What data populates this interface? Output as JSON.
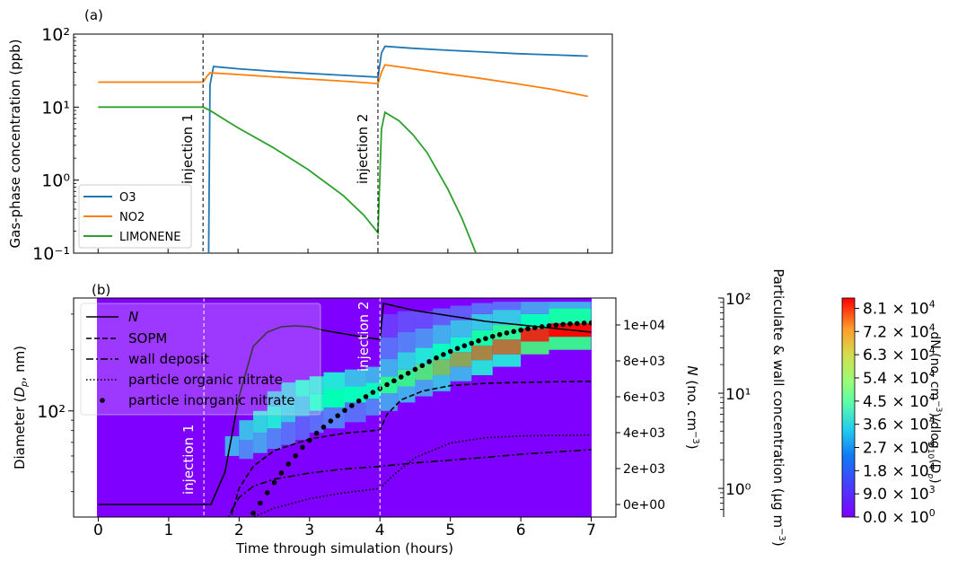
{
  "chart_data": [
    {
      "panel_label": "(a)",
      "type": "line",
      "ylabel": "Gas-phase concentration (ppb)",
      "yscale": "log",
      "ylim": [
        0.1,
        100
      ],
      "xlim": [
        -0.35,
        7.35
      ],
      "xticks": [
        0,
        1,
        2,
        3,
        4,
        5,
        6,
        7
      ],
      "yticks": [
        {
          "value": 0.1,
          "label": "10⁻¹"
        },
        {
          "value": 1,
          "label": "10⁰"
        },
        {
          "value": 10,
          "label": "10¹"
        },
        {
          "value": 100,
          "label": "10²"
        }
      ],
      "legend_position": "lower-left",
      "series": [
        {
          "name": "O3",
          "color": "#1f77b4",
          "x": [
            0,
            1.5,
            1.56,
            1.58,
            1.6,
            1.65,
            2.0,
            2.5,
            3.0,
            3.5,
            4.0,
            4.03,
            4.05,
            4.1,
            4.5,
            5.0,
            5.5,
            6.0,
            6.5,
            7.0
          ],
          "y": [
            null,
            null,
            null,
            0.1,
            20,
            36,
            33.5,
            31,
            29,
            27.3,
            25.8,
            40,
            55,
            68,
            64,
            60,
            57,
            54,
            52,
            50
          ]
        },
        {
          "name": "NO2",
          "color": "#ff7f0e",
          "x": [
            0,
            1.0,
            1.5,
            1.55,
            1.6,
            2.0,
            2.5,
            3.0,
            3.5,
            4.0,
            4.05,
            4.1,
            4.5,
            5.0,
            5.5,
            6.0,
            6.5,
            7.0
          ],
          "y": [
            22,
            22,
            22,
            26,
            29.5,
            28,
            26,
            24.3,
            22.7,
            21,
            30,
            38,
            33.5,
            28.5,
            24.5,
            20.8,
            17.5,
            14
          ]
        },
        {
          "name": "LIMONENE",
          "color": "#2ca02c",
          "x": [
            0,
            1.0,
            1.5,
            1.6,
            2.0,
            2.5,
            3.0,
            3.5,
            3.8,
            4.0,
            4.05,
            4.1,
            4.3,
            4.5,
            4.7,
            5.0,
            5.2,
            5.4
          ],
          "y": [
            10,
            10,
            10,
            9,
            5.2,
            2.8,
            1.4,
            0.62,
            0.33,
            0.19,
            5,
            8.5,
            6.5,
            4.2,
            2.4,
            0.75,
            0.3,
            0.1
          ]
        }
      ],
      "annotations": [
        {
          "text": "injection 1",
          "x": 1.5
        },
        {
          "text": "injection 2",
          "x": 4.0
        }
      ]
    },
    {
      "panel_label": "(b)",
      "type": "heatmap",
      "xlabel": "Time through simulation (hours)",
      "ylabel": "Diameter (Dp, nm)",
      "ylabel_parts": [
        "Diameter (",
        "D",
        "p",
        ", nm)"
      ],
      "yscale": "log",
      "xlim": [
        -0.35,
        7.35
      ],
      "xticks": [
        0,
        1,
        2,
        3,
        4,
        5,
        6,
        7
      ],
      "ytick": {
        "value": 100,
        "label": "10²"
      },
      "secondary_axis_N": {
        "label_parts": [
          "N",
          " (no. cm",
          "−3",
          ")"
        ],
        "ylim": [
          -700,
          11500
        ],
        "ticks": [
          0,
          2000,
          4000,
          6000,
          8000,
          10000
        ],
        "tick_labels": [
          "0e+00",
          "2e+03",
          "4e+03",
          "6e+03",
          "8e+03",
          "1e+04"
        ]
      },
      "secondary_axis_mass": {
        "label_parts": [
          "Particulate & wall concentration (μg m",
          "−3",
          ")"
        ],
        "yscale": "log",
        "ylim": [
          0.5,
          100
        ],
        "ticks": [
          {
            "value": 1,
            "label": "10⁰"
          },
          {
            "value": 10,
            "label": "10¹"
          },
          {
            "value": 100,
            "label": "10²"
          }
        ]
      },
      "colorbar": {
        "label_parts": [
          "dN (no. cm",
          "−3",
          ")/dlog",
          "10",
          "(D",
          "p",
          ")"
        ],
        "ticks": [
          "8.1",
          "7.2",
          "6.3",
          "5.4",
          "4.5",
          "3.6",
          "2.7",
          "1.8",
          "9.0"
        ],
        "tick_exponents": [
          "4",
          "4",
          "4",
          "4",
          "4",
          "4",
          "4",
          "4",
          "3"
        ],
        "tick_values": [
          81000,
          72000,
          63000,
          54000,
          45000,
          36000,
          27000,
          18000,
          9000
        ],
        "zero_label": "0.0",
        "zero_exponent": "0",
        "tick_prefix": "× 10",
        "vmin": 0,
        "vmax": 85000,
        "colormap": "rainbow"
      },
      "legend_position": "upper-left",
      "series": [
        {
          "name": "N",
          "style": "solid",
          "axis": "N",
          "x": [
            0,
            1.5,
            1.6,
            1.8,
            2.0,
            2.2,
            2.4,
            2.6,
            2.8,
            3.0,
            3.2,
            3.5,
            3.8,
            4.0,
            4.05,
            4.5,
            5.0,
            5.5,
            6.0,
            6.5,
            7.0
          ],
          "y": [
            0,
            0,
            0,
            1800,
            6000,
            8800,
            9600,
            9900,
            9950,
            9900,
            9700,
            9500,
            9300,
            9200,
            11200,
            10800,
            10500,
            10200,
            10000,
            9800,
            9600
          ]
        },
        {
          "name": "SOPM",
          "style": "dashed",
          "axis": "mass",
          "x": [
            1.8,
            1.9,
            2.0,
            2.2,
            2.5,
            3.0,
            3.5,
            4.0,
            4.1,
            4.3,
            4.6,
            5.0,
            5.5,
            6.0,
            6.5,
            7.0
          ],
          "y": [
            0.3,
            0.55,
            1.0,
            1.7,
            2.5,
            3.3,
            3.8,
            4.1,
            6.0,
            8.5,
            10.5,
            12.0,
            12.7,
            13.0,
            13.2,
            13.3
          ]
        },
        {
          "name": "wall deposit",
          "style": "dashdot",
          "axis": "mass",
          "x": [
            1.8,
            1.9,
            2.0,
            2.2,
            2.5,
            3.0,
            3.5,
            4.0,
            4.5,
            5.0,
            5.5,
            6.0,
            6.5,
            7.0
          ],
          "y": [
            0.4,
            0.6,
            0.8,
            1.05,
            1.25,
            1.45,
            1.6,
            1.7,
            1.85,
            1.98,
            2.12,
            2.28,
            2.42,
            2.55
          ]
        },
        {
          "name": "particle organic nitrate",
          "style": "dotted",
          "axis": "mass",
          "x": [
            2.0,
            2.2,
            2.5,
            3.0,
            3.5,
            4.0,
            4.2,
            4.5,
            5.0,
            5.5,
            6.0,
            6.5,
            7.0
          ],
          "y": [
            0.35,
            0.5,
            0.62,
            0.78,
            0.9,
            1.0,
            1.4,
            2.1,
            3.0,
            3.4,
            3.55,
            3.6,
            3.65
          ]
        },
        {
          "name": "particle inorganic nitrate",
          "style": "points",
          "axis": "mass",
          "x": [
            2.2,
            2.3,
            2.4,
            2.5,
            2.6,
            2.7,
            2.8,
            2.9,
            3.0,
            3.1,
            3.2,
            3.3,
            3.4,
            3.5,
            3.6,
            3.7,
            3.8,
            3.9,
            4.0,
            4.1,
            4.2,
            4.3,
            4.4,
            4.5,
            4.6,
            4.7,
            4.8,
            4.9,
            5.0,
            5.1,
            5.2,
            5.3,
            5.4,
            5.5,
            5.6,
            5.7,
            5.8,
            5.9,
            6.0,
            6.1,
            6.2,
            6.3,
            6.4,
            6.5,
            6.6,
            6.7,
            6.8,
            6.9,
            7.0
          ],
          "y": [
            0.55,
            0.7,
            0.9,
            1.15,
            1.45,
            1.8,
            2.2,
            2.7,
            3.2,
            3.8,
            4.4,
            5.1,
            5.8,
            6.6,
            7.4,
            8.3,
            9.2,
            10.2,
            11.2,
            12.3,
            13.5,
            14.8,
            16.2,
            17.8,
            19.5,
            21.5,
            23.5,
            25.5,
            27.5,
            29.5,
            31.5,
            33.5,
            35.5,
            37.5,
            39.5,
            41.3,
            43.0,
            44.5,
            46.0,
            47.5,
            48.8,
            50.0,
            51.0,
            52.0,
            52.8,
            53.5,
            54.0,
            54.5,
            54.8
          ]
        }
      ],
      "annotations": [
        {
          "text": "injection 1",
          "x": 1.5
        },
        {
          "text": "injection 2",
          "x": 4.0
        }
      ],
      "heatmap_cells": [
        {
          "t0": 1.8,
          "t1": 2.0,
          "d0": 60,
          "d1": 75,
          "value": 20000
        },
        {
          "t0": 2.0,
          "t1": 2.2,
          "d0": 58,
          "d1": 72,
          "value": 15000
        },
        {
          "t0": 2.0,
          "t1": 2.2,
          "d0": 72,
          "d1": 90,
          "value": 22000
        },
        {
          "t0": 2.2,
          "t1": 2.4,
          "d0": 62,
          "d1": 78,
          "value": 18000
        },
        {
          "t0": 2.2,
          "t1": 2.4,
          "d0": 78,
          "d1": 100,
          "value": 26000
        },
        {
          "t0": 2.4,
          "t1": 2.6,
          "d0": 65,
          "d1": 82,
          "value": 14000
        },
        {
          "t0": 2.4,
          "t1": 2.6,
          "d0": 82,
          "d1": 105,
          "value": 30000
        },
        {
          "t0": 2.4,
          "t1": 2.6,
          "d0": 105,
          "d1": 125,
          "value": 20000
        },
        {
          "t0": 2.6,
          "t1": 2.8,
          "d0": 68,
          "d1": 88,
          "value": 12000
        },
        {
          "t0": 2.6,
          "t1": 2.8,
          "d0": 88,
          "d1": 112,
          "value": 24000
        },
        {
          "t0": 2.6,
          "t1": 2.8,
          "d0": 112,
          "d1": 138,
          "value": 22000
        },
        {
          "t0": 2.8,
          "t1": 3.0,
          "d0": 72,
          "d1": 94,
          "value": 10000
        },
        {
          "t0": 2.8,
          "t1": 3.0,
          "d0": 94,
          "d1": 118,
          "value": 22000
        },
        {
          "t0": 2.8,
          "t1": 3.0,
          "d0": 118,
          "d1": 142,
          "value": 32000
        },
        {
          "t0": 3.0,
          "t1": 3.2,
          "d0": 78,
          "d1": 100,
          "value": 12000
        },
        {
          "t0": 3.0,
          "t1": 3.2,
          "d0": 100,
          "d1": 122,
          "value": 36000
        },
        {
          "t0": 3.0,
          "t1": 3.2,
          "d0": 122,
          "d1": 148,
          "value": 28000
        },
        {
          "t0": 3.2,
          "t1": 3.5,
          "d0": 82,
          "d1": 104,
          "value": 14000
        },
        {
          "t0": 3.2,
          "t1": 3.5,
          "d0": 104,
          "d1": 128,
          "value": 42000
        },
        {
          "t0": 3.2,
          "t1": 3.5,
          "d0": 128,
          "d1": 155,
          "value": 30000
        },
        {
          "t0": 3.5,
          "t1": 3.8,
          "d0": 88,
          "d1": 110,
          "value": 12000
        },
        {
          "t0": 3.5,
          "t1": 3.8,
          "d0": 110,
          "d1": 132,
          "value": 40000
        },
        {
          "t0": 3.5,
          "t1": 3.8,
          "d0": 132,
          "d1": 160,
          "value": 22000
        },
        {
          "t0": 3.8,
          "t1": 4.0,
          "d0": 95,
          "d1": 115,
          "value": 14000
        },
        {
          "t0": 3.8,
          "t1": 4.0,
          "d0": 115,
          "d1": 138,
          "value": 38000
        },
        {
          "t0": 3.8,
          "t1": 4.0,
          "d0": 138,
          "d1": 165,
          "value": 20000
        },
        {
          "t0": 4.0,
          "t1": 4.25,
          "d0": 100,
          "d1": 122,
          "value": 18000
        },
        {
          "t0": 4.0,
          "t1": 4.25,
          "d0": 122,
          "d1": 148,
          "value": 50000
        },
        {
          "t0": 4.0,
          "t1": 4.25,
          "d0": 148,
          "d1": 180,
          "value": 20000
        },
        {
          "t0": 4.0,
          "t1": 4.25,
          "d0": 180,
          "d1": 230,
          "value": 12000
        },
        {
          "t0": 4.0,
          "t1": 4.25,
          "d0": 230,
          "d1": 300,
          "value": 6000
        },
        {
          "t0": 4.25,
          "t1": 4.5,
          "d0": 110,
          "d1": 132,
          "value": 20000
        },
        {
          "t0": 4.25,
          "t1": 4.5,
          "d0": 132,
          "d1": 160,
          "value": 52000
        },
        {
          "t0": 4.25,
          "t1": 4.5,
          "d0": 160,
          "d1": 195,
          "value": 25000
        },
        {
          "t0": 4.25,
          "t1": 4.5,
          "d0": 195,
          "d1": 245,
          "value": 14000
        },
        {
          "t0": 4.25,
          "t1": 4.5,
          "d0": 245,
          "d1": 310,
          "value": 8000
        },
        {
          "t0": 4.5,
          "t1": 4.75,
          "d0": 118,
          "d1": 142,
          "value": 18000
        },
        {
          "t0": 4.5,
          "t1": 4.75,
          "d0": 142,
          "d1": 170,
          "value": 56000
        },
        {
          "t0": 4.5,
          "t1": 4.75,
          "d0": 170,
          "d1": 205,
          "value": 30000
        },
        {
          "t0": 4.5,
          "t1": 4.75,
          "d0": 205,
          "d1": 255,
          "value": 16000
        },
        {
          "t0": 4.5,
          "t1": 4.75,
          "d0": 255,
          "d1": 310,
          "value": 8000
        },
        {
          "t0": 4.75,
          "t1": 5.0,
          "d0": 125,
          "d1": 150,
          "value": 22000
        },
        {
          "t0": 4.75,
          "t1": 5.0,
          "d0": 150,
          "d1": 180,
          "value": 62000
        },
        {
          "t0": 4.75,
          "t1": 5.0,
          "d0": 180,
          "d1": 215,
          "value": 38000
        },
        {
          "t0": 4.75,
          "t1": 5.0,
          "d0": 215,
          "d1": 265,
          "value": 20000
        },
        {
          "t0": 4.75,
          "t1": 5.0,
          "d0": 265,
          "d1": 320,
          "value": 10000
        },
        {
          "t0": 5.0,
          "t1": 5.3,
          "d0": 140,
          "d1": 165,
          "value": 20000
        },
        {
          "t0": 5.0,
          "t1": 5.3,
          "d0": 165,
          "d1": 195,
          "value": 66000
        },
        {
          "t0": 5.0,
          "t1": 5.3,
          "d0": 195,
          "d1": 230,
          "value": 36000
        },
        {
          "t0": 5.0,
          "t1": 5.3,
          "d0": 230,
          "d1": 280,
          "value": 22000
        },
        {
          "t0": 5.0,
          "t1": 5.3,
          "d0": 280,
          "d1": 330,
          "value": 10000
        },
        {
          "t0": 5.3,
          "t1": 5.6,
          "d0": 150,
          "d1": 178,
          "value": 28000
        },
        {
          "t0": 5.3,
          "t1": 5.6,
          "d0": 178,
          "d1": 210,
          "value": 70000
        },
        {
          "t0": 5.3,
          "t1": 5.6,
          "d0": 210,
          "d1": 250,
          "value": 46000
        },
        {
          "t0": 5.3,
          "t1": 5.6,
          "d0": 250,
          "d1": 300,
          "value": 24000
        },
        {
          "t0": 5.3,
          "t1": 5.6,
          "d0": 300,
          "d1": 340,
          "value": 12000
        },
        {
          "t0": 5.6,
          "t1": 6.0,
          "d0": 165,
          "d1": 190,
          "value": 28000
        },
        {
          "t0": 5.6,
          "t1": 6.0,
          "d0": 190,
          "d1": 225,
          "value": 72000
        },
        {
          "t0": 5.6,
          "t1": 6.0,
          "d0": 225,
          "d1": 265,
          "value": 50000
        },
        {
          "t0": 5.6,
          "t1": 6.0,
          "d0": 265,
          "d1": 315,
          "value": 24000
        },
        {
          "t0": 5.6,
          "t1": 6.0,
          "d0": 315,
          "d1": 345,
          "value": 12000
        },
        {
          "t0": 6.0,
          "t1": 6.4,
          "d0": 190,
          "d1": 220,
          "value": 55000
        },
        {
          "t0": 6.0,
          "t1": 6.4,
          "d0": 220,
          "d1": 255,
          "value": 80000
        },
        {
          "t0": 6.0,
          "t1": 6.4,
          "d0": 255,
          "d1": 300,
          "value": 40000
        },
        {
          "t0": 6.0,
          "t1": 6.4,
          "d0": 300,
          "d1": 345,
          "value": 18000
        },
        {
          "t0": 6.4,
          "t1": 7.0,
          "d0": 200,
          "d1": 232,
          "value": 52000
        },
        {
          "t0": 6.4,
          "t1": 7.0,
          "d0": 232,
          "d1": 270,
          "value": 84000
        },
        {
          "t0": 6.4,
          "t1": 7.0,
          "d0": 270,
          "d1": 320,
          "value": 46000
        },
        {
          "t0": 6.4,
          "t1": 7.0,
          "d0": 320,
          "d1": 345,
          "value": 20000
        }
      ]
    }
  ]
}
